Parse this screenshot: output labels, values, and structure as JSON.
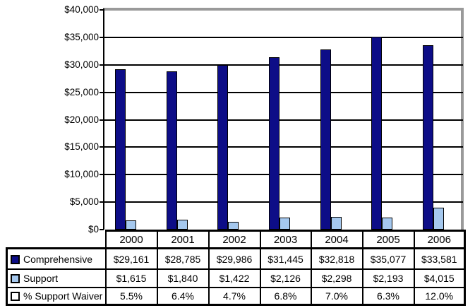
{
  "chart_data": {
    "type": "bar",
    "title": "",
    "categories": [
      "2000",
      "2001",
      "2002",
      "2003",
      "2004",
      "2005",
      "2006"
    ],
    "series": [
      {
        "name": "Comprehensive",
        "color": "#0D0D87",
        "plotted_as_bars": true,
        "values": [
          29161,
          28785,
          29986,
          31445,
          32818,
          35077,
          33581
        ],
        "value_labels": [
          "$29,161",
          "$28,785",
          "$29,986",
          "$31,445",
          "$32,818",
          "$35,077",
          "$33,581"
        ]
      },
      {
        "name": "Support",
        "color": "#A5C8EE",
        "plotted_as_bars": true,
        "values": [
          1615,
          1840,
          1422,
          2126,
          2298,
          2193,
          4015
        ],
        "value_labels": [
          "$1,615",
          "$1,840",
          "$1,422",
          "$2,126",
          "$2,298",
          "$2,193",
          "$4,015"
        ]
      },
      {
        "name": "% Support Waiver",
        "color": "#FFFFFF",
        "plotted_as_bars": false,
        "values": [
          5.5,
          6.4,
          4.7,
          6.8,
          7.0,
          6.3,
          12.0
        ],
        "value_labels": [
          "5.5%",
          "6.4%",
          "4.7%",
          "6.8%",
          "7.0%",
          "6.3%",
          "12.0%"
        ]
      }
    ],
    "y_axis": {
      "min": 0,
      "max": 40000,
      "ticks": [
        {
          "value": 40000,
          "label": "$40,000"
        },
        {
          "value": 35000,
          "label": "$35,000"
        },
        {
          "value": 30000,
          "label": "$30,000"
        },
        {
          "value": 25000,
          "label": "$25,000"
        },
        {
          "value": 20000,
          "label": "$20,000"
        },
        {
          "value": 15000,
          "label": "$15,000"
        },
        {
          "value": 10000,
          "label": "$10,000"
        },
        {
          "value": 5000,
          "label": "$5,000"
        },
        {
          "value": 0,
          "label": "$0"
        }
      ]
    },
    "grid": true,
    "legend_position": "data-table-left",
    "colors": {
      "gridline": "#000000",
      "plot_outer_border": "#9A9A9A",
      "axis": "#000000",
      "table_border": "#000000"
    }
  }
}
